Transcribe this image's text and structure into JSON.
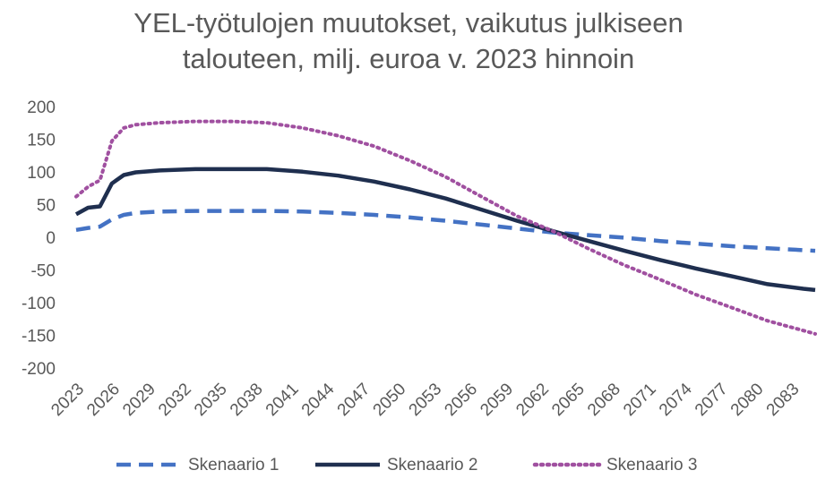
{
  "chart_data": {
    "type": "line",
    "title": "YEL-työtulojen muutokset, vaikutus julkiseen talouteen, milj. euroa v. 2023 hinnoin",
    "x": [
      2023,
      2024,
      2025,
      2026,
      2027,
      2028,
      2030,
      2033,
      2036,
      2039,
      2042,
      2045,
      2048,
      2051,
      2054,
      2057,
      2060,
      2063,
      2066,
      2069,
      2072,
      2075,
      2078,
      2081,
      2084,
      2085
    ],
    "series": [
      {
        "name": "Skenaario 1",
        "color": "#4472c4",
        "dash": "dashed",
        "values": [
          14,
          17,
          19,
          30,
          37,
          40,
          42,
          43,
          43,
          43,
          42,
          40,
          37,
          33,
          28,
          22,
          16,
          10,
          6,
          2,
          -3,
          -7,
          -11,
          -14,
          -17,
          -18
        ]
      },
      {
        "name": "Skenaario 2",
        "color": "#1f2f4f",
        "dash": "solid",
        "values": [
          38,
          48,
          50,
          85,
          98,
          102,
          105,
          107,
          107,
          107,
          103,
          97,
          88,
          76,
          62,
          45,
          28,
          12,
          -3,
          -18,
          -32,
          -45,
          -57,
          -69,
          -76,
          -78
        ]
      },
      {
        "name": "Skenaario 3",
        "color": "#a050a0",
        "dash": "dotted",
        "values": [
          65,
          80,
          90,
          150,
          170,
          175,
          178,
          180,
          180,
          178,
          170,
          158,
          142,
          120,
          95,
          65,
          35,
          12,
          -15,
          -40,
          -62,
          -85,
          -105,
          -125,
          -140,
          -145
        ]
      }
    ],
    "xlim": [
      2023,
      2085
    ],
    "xticks": [
      2023,
      2026,
      2029,
      2032,
      2035,
      2038,
      2041,
      2044,
      2047,
      2050,
      2053,
      2056,
      2059,
      2062,
      2065,
      2068,
      2071,
      2074,
      2077,
      2080,
      2083
    ],
    "ylim": [
      -200,
      200
    ],
    "yticks": [
      -200,
      -150,
      -100,
      -50,
      0,
      50,
      100,
      150,
      200
    ],
    "grid": false,
    "legend": "bottom"
  }
}
